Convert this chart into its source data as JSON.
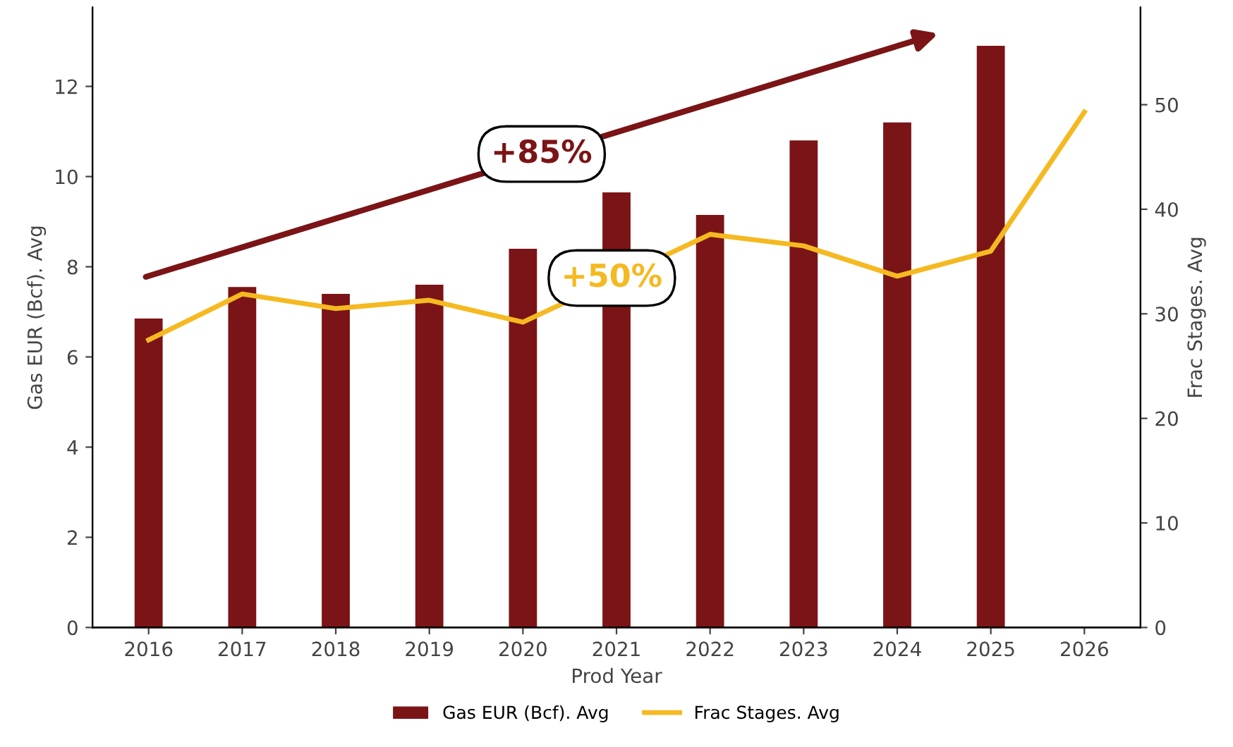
{
  "chart_data": {
    "type": "bar",
    "xlabel": "Prod Year",
    "ylabel": "Gas EUR (Bcf). Avg",
    "y2label": "Frac Stages. Avg",
    "categories": [
      "2016",
      "2017",
      "2018",
      "2019",
      "2020",
      "2021",
      "2022",
      "2023",
      "2024",
      "2025",
      "2026"
    ],
    "series": [
      {
        "name": "Gas EUR (Bcf). Avg",
        "color": "#7b1416",
        "values": [
          6.85,
          7.55,
          7.4,
          7.6,
          8.4,
          9.65,
          9.15,
          10.8,
          11.2,
          12.9,
          null
        ]
      },
      {
        "name": "Frac Stages. Avg",
        "type": "line",
        "axis": "y2",
        "color": "#f5b921",
        "values": [
          27.5,
          31.9,
          30.5,
          31.3,
          29.2,
          null,
          37.6,
          36.5,
          33.6,
          36,
          49.3
        ]
      }
    ],
    "ylim": [
      0,
      13.75
    ],
    "yticks": [
      0,
      2,
      4,
      6,
      8,
      10,
      12
    ],
    "y2lim": [
      0,
      59.3
    ],
    "y2ticks": [
      0,
      10,
      20,
      30,
      40,
      50
    ],
    "annotations": [
      "+85%",
      "+50%"
    ],
    "grid": false,
    "legend": "bottom",
    "marker": "none",
    "line_style": "solid"
  }
}
